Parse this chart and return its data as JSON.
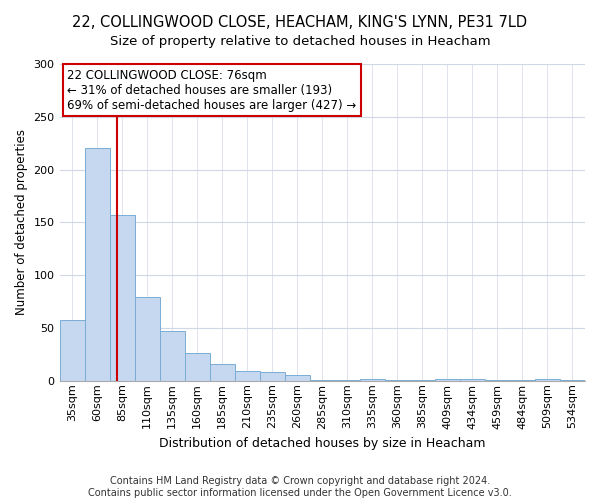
{
  "title1": "22, COLLINGWOOD CLOSE, HEACHAM, KING'S LYNN, PE31 7LD",
  "title2": "Size of property relative to detached houses in Heacham",
  "xlabel": "Distribution of detached houses by size in Heacham",
  "ylabel": "Number of detached properties",
  "footer1": "Contains HM Land Registry data © Crown copyright and database right 2024.",
  "footer2": "Contains public sector information licensed under the Open Government Licence v3.0.",
  "categories": [
    "35sqm",
    "60sqm",
    "85sqm",
    "110sqm",
    "135sqm",
    "160sqm",
    "185sqm",
    "210sqm",
    "235sqm",
    "260sqm",
    "285sqm",
    "310sqm",
    "335sqm",
    "360sqm",
    "385sqm",
    "409sqm",
    "434sqm",
    "459sqm",
    "484sqm",
    "509sqm",
    "534sqm"
  ],
  "values": [
    58,
    220,
    157,
    79,
    47,
    26,
    16,
    9,
    8,
    5,
    1,
    1,
    2,
    1,
    1,
    2,
    2,
    1,
    1,
    2,
    1
  ],
  "bar_color": "#c5d8f0",
  "bar_edge_color": "#7aadd4",
  "annotation_box_text": "22 COLLINGWOOD CLOSE: 76sqm\n← 31% of detached houses are smaller (193)\n69% of semi-detached houses are larger (427) →",
  "vline_color": "#cc0000",
  "vline_x_bin": 1.78,
  "ylim": [
    0,
    300
  ],
  "yticks": [
    0,
    50,
    100,
    150,
    200,
    250,
    300
  ],
  "background_color": "#ffffff",
  "grid_color": "#d0d8e8",
  "annotation_box_color": "#ffffff",
  "annotation_box_edge_color": "#cc0000",
  "title1_fontsize": 10.5,
  "title2_fontsize": 9.5,
  "ylabel_fontsize": 8.5,
  "xlabel_fontsize": 9,
  "tick_fontsize": 8,
  "annotation_fontsize": 8.5,
  "footer_fontsize": 7
}
